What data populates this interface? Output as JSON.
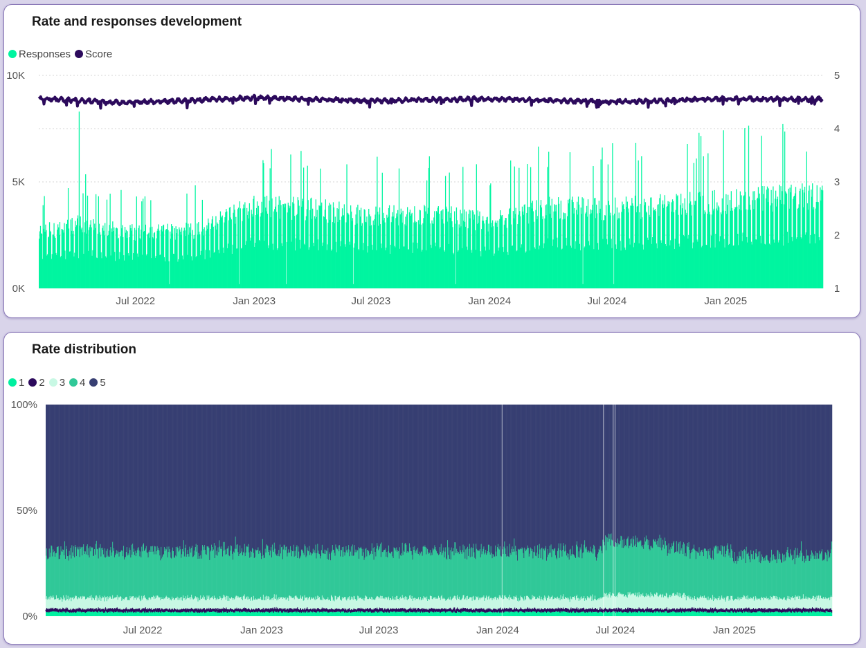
{
  "chart_data": [
    {
      "type": "bar+line",
      "title": "Rate and responses development",
      "legend": [
        {
          "name": "Responses",
          "color": "#00f5a0"
        },
        {
          "name": "Score",
          "color": "#2c0a5c"
        }
      ],
      "legend_position": "top-left",
      "x_tick_labels": [
        "Jul 2022",
        "Jan 2023",
        "Jul 2023",
        "Jan 2024",
        "Jul 2024",
        "Jan 2025"
      ],
      "x_range": [
        "2022-02-01",
        "2025-05-31"
      ],
      "y_left": {
        "ticks": [
          "0K",
          "5K",
          "10K"
        ],
        "range": [
          0,
          10000
        ]
      },
      "y_right": {
        "ticks": [
          "1",
          "2",
          "3",
          "4",
          "5"
        ],
        "range": [
          1,
          5
        ]
      },
      "grid": "horizontal dotted",
      "series": [
        {
          "name": "Responses",
          "type": "bar",
          "axis": "left",
          "color": "#00f5a0",
          "approx_daily_level_by_month": [
            [
              "2022-02",
              2600
            ],
            [
              "2022-04",
              3000
            ],
            [
              "2022-07",
              2600
            ],
            [
              "2022-10",
              2700
            ],
            [
              "2023-01",
              3900
            ],
            [
              "2023-04",
              3700
            ],
            [
              "2023-07",
              3400
            ],
            [
              "2023-10",
              3500
            ],
            [
              "2024-01",
              3100
            ],
            [
              "2024-04",
              3800
            ],
            [
              "2024-07",
              3700
            ],
            [
              "2024-10",
              3900
            ],
            [
              "2025-01",
              4100
            ],
            [
              "2025-05",
              4300
            ]
          ],
          "peak": 8300
        },
        {
          "name": "Score",
          "type": "line",
          "axis": "right",
          "color": "#2c0a5c",
          "approx_level_by_month": [
            [
              "2022-02",
              4.57
            ],
            [
              "2022-06",
              4.49
            ],
            [
              "2022-10",
              4.53
            ],
            [
              "2023-01",
              4.58
            ],
            [
              "2023-07",
              4.52
            ],
            [
              "2024-01",
              4.56
            ],
            [
              "2024-07",
              4.5
            ],
            [
              "2025-01",
              4.56
            ],
            [
              "2025-05",
              4.55
            ]
          ]
        }
      ]
    },
    {
      "type": "stacked-bar-100",
      "title": "Rate distribution",
      "legend": [
        {
          "name": "1",
          "color": "#00f0a0"
        },
        {
          "name": "2",
          "color": "#2c0a5c"
        },
        {
          "name": "3",
          "color": "#c8f8e4"
        },
        {
          "name": "4",
          "color": "#30c898"
        },
        {
          "name": "5",
          "color": "#373f72"
        }
      ],
      "legend_position": "top-left",
      "x_tick_labels": [
        "Jul 2022",
        "Jan 2023",
        "Jul 2023",
        "Jan 2024",
        "Jul 2024",
        "Jan 2025"
      ],
      "x_range": [
        "2022-02-01",
        "2025-05-31"
      ],
      "y": {
        "ticks": [
          "0%",
          "50%",
          "100%"
        ],
        "range": [
          0,
          100
        ]
      },
      "approx_share_percent": {
        "1": 2,
        "2": 1.5,
        "3": 5,
        "4": 22,
        "5": 69.5
      }
    }
  ]
}
